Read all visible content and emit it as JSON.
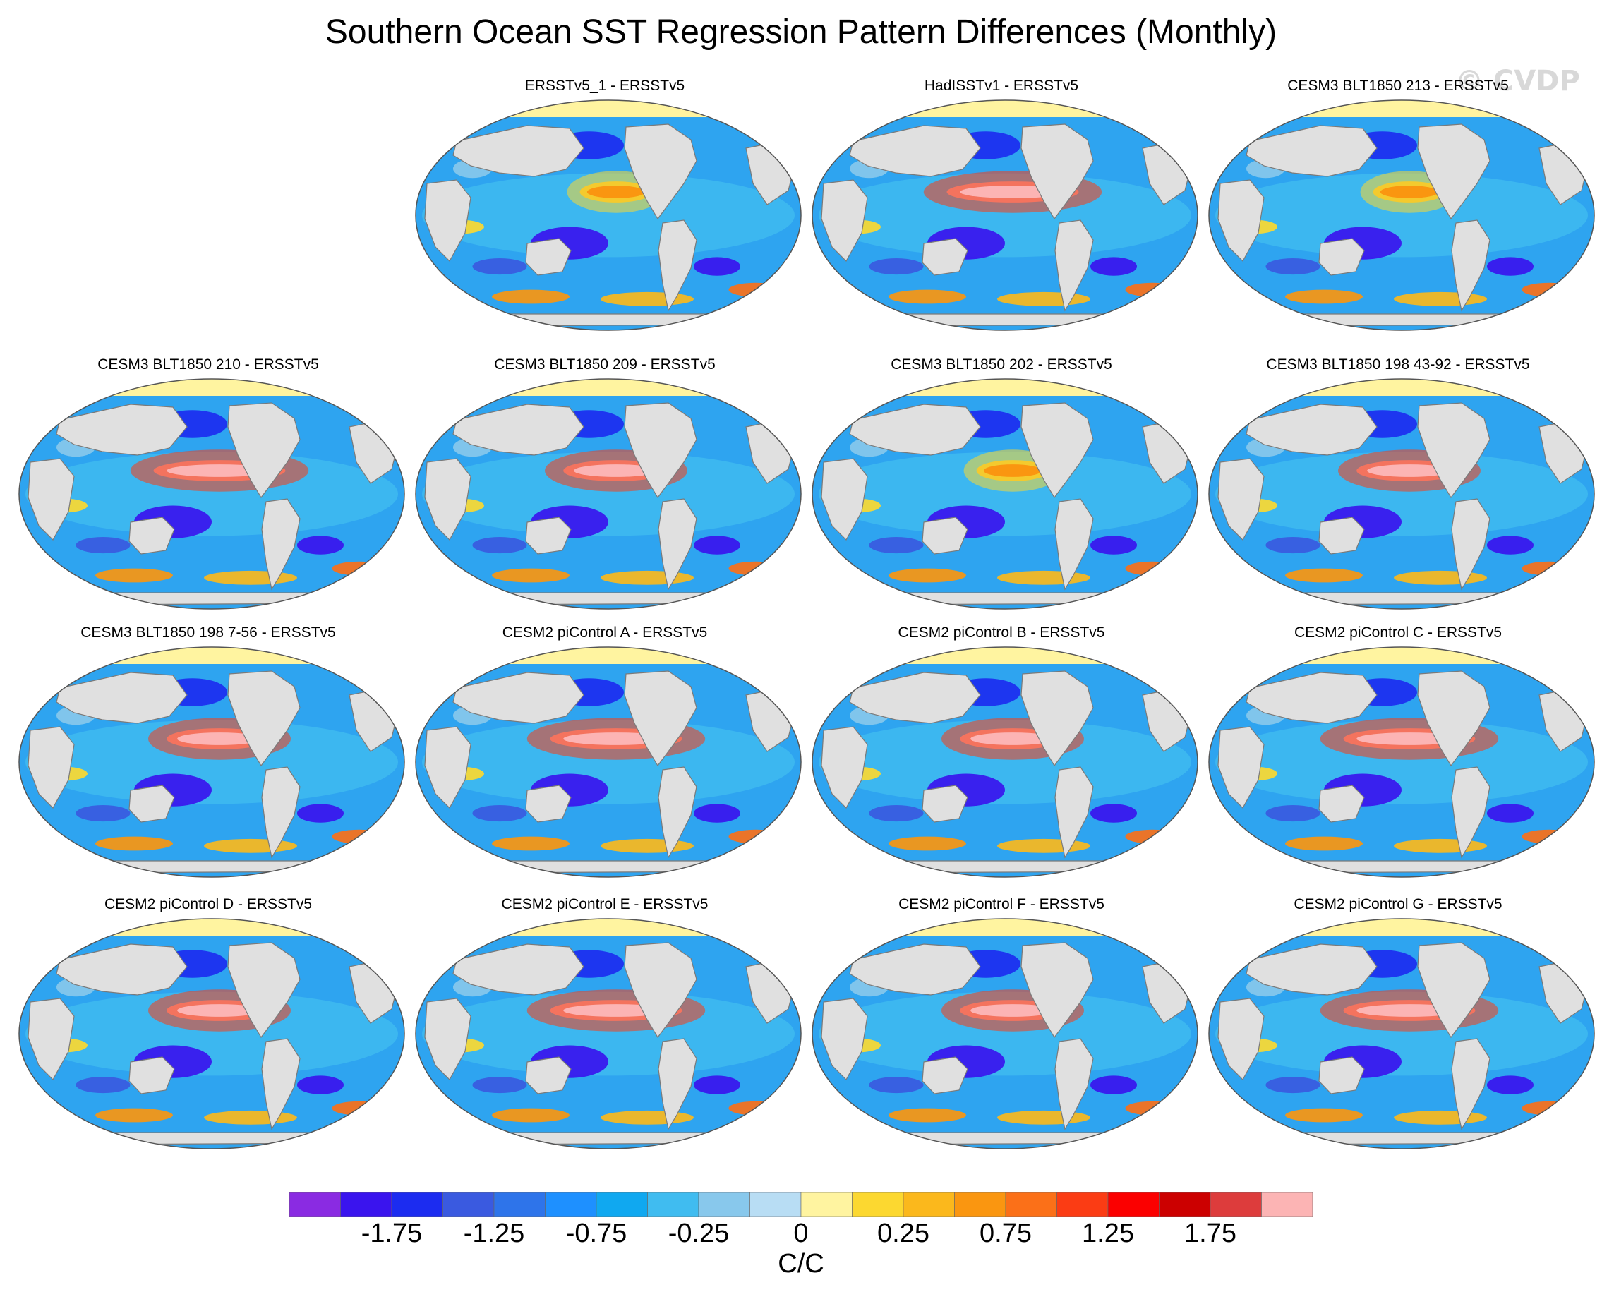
{
  "figure": {
    "title": "Southern Ocean SST Regression Pattern Differences (Monthly)",
    "watermark": "© CVDP"
  },
  "panels": [
    {
      "title": "ERSSTv5_1 - ERSSTv5",
      "pattern": "weak"
    },
    {
      "title": "HadISSTv1 - ERSSTv5",
      "pattern": "strong"
    },
    {
      "title": "CESM3 BLT1850 213 - ERSSTv5",
      "pattern": "weak"
    },
    {
      "title": "CESM3 BLT1850 210 - ERSSTv5",
      "pattern": "strong"
    },
    {
      "title": "CESM3 BLT1850 209 - ERSSTv5",
      "pattern": "moderate"
    },
    {
      "title": "CESM3 BLT1850 202 - ERSSTv5",
      "pattern": "weak"
    },
    {
      "title": "CESM3 BLT1850 198 43-92 - ERSSTv5",
      "pattern": "moderate"
    },
    {
      "title": "CESM3 BLT1850 198 7-56 - ERSSTv5",
      "pattern": "moderate"
    },
    {
      "title": "CESM2 piControl A - ERSSTv5",
      "pattern": "strong"
    },
    {
      "title": "CESM2 piControl B - ERSSTv5",
      "pattern": "moderate"
    },
    {
      "title": "CESM2 piControl C - ERSSTv5",
      "pattern": "strong"
    },
    {
      "title": "CESM2 piControl D - ERSSTv5",
      "pattern": "moderate"
    },
    {
      "title": "CESM2 piControl E - ERSSTv5",
      "pattern": "strong"
    },
    {
      "title": "CESM2 piControl F - ERSSTv5",
      "pattern": "moderate"
    },
    {
      "title": "CESM2 piControl G - ERSSTv5",
      "pattern": "strong"
    }
  ],
  "colorbar": {
    "units": "C/C",
    "colors": [
      "#8a2be2",
      "#3a14ee",
      "#1c2cf0",
      "#3a5ae0",
      "#2e74ea",
      "#1e90ff",
      "#10a8f0",
      "#40bcf0",
      "#88c8ec",
      "#b8ddf4",
      "#fff4a0",
      "#fcd830",
      "#fbb81c",
      "#fa9610",
      "#fb7018",
      "#fb3c14",
      "#fb0000",
      "#cc0000",
      "#dd3c3c",
      "#fcb4b4"
    ],
    "labels": [
      "-1.75",
      "-1.25",
      "-0.75",
      "-0.25",
      "0",
      "0.25",
      "0.75",
      "1.25",
      "1.75"
    ]
  }
}
